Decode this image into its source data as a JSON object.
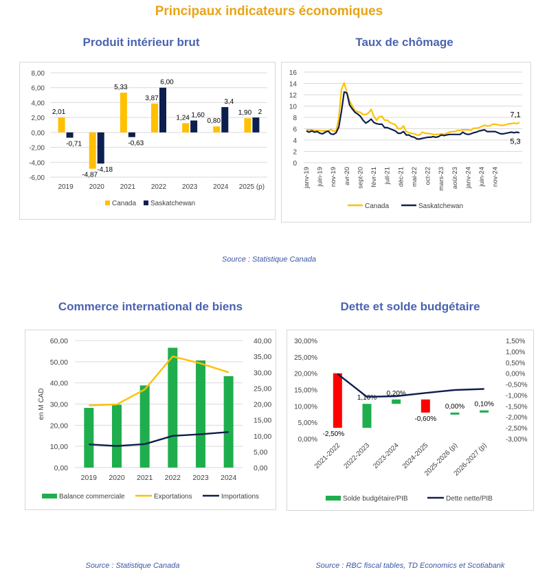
{
  "page": {
    "title": "Principaux indicateurs économiques",
    "source_top": "Source : Statistique Canada",
    "source_bottom_left": "Source : Statistique Canada",
    "source_bottom_right": "Source : RBC fiscal tables, TD Economics et Scotiabank"
  },
  "colors": {
    "canada": "#FFC000",
    "sask": "#0D1F4E",
    "green": "#1FAE4E",
    "red": "#FF0000",
    "title": "#E8A317",
    "subtitle": "#4A63B0"
  },
  "chart_data": [
    {
      "id": "pib",
      "type": "bar",
      "title": "Produit intérieur brut",
      "categories": [
        "2019",
        "2020",
        "2021",
        "2022",
        "2023",
        "2024",
        "2025 (p)"
      ],
      "series": [
        {
          "name": "Canada",
          "values": [
            2.01,
            -4.87,
            5.33,
            3.87,
            1.24,
            0.8,
            1.9
          ],
          "labels": [
            "2,01",
            "-4,87",
            "5,33",
            "3,87",
            "1,24",
            "0,80",
            "1,90"
          ]
        },
        {
          "name": "Saskatchewan",
          "values": [
            -0.71,
            -4.18,
            -0.63,
            6.0,
            1.6,
            3.4,
            2
          ],
          "labels": [
            "-0,71",
            "-4,18",
            "-0,63",
            "6,00",
            "1,60",
            "3,4",
            "2"
          ]
        }
      ],
      "ylim": [
        -6,
        8
      ],
      "yticks": [
        "-6,00",
        "-4,00",
        "-2,00",
        "0,00",
        "2,00",
        "4,00",
        "6,00",
        "8,00"
      ]
    },
    {
      "id": "chomage",
      "type": "line",
      "title": "Taux de chômage",
      "x_tick_labels": [
        "janv-19",
        "juin-19",
        "nov-19",
        "avr-20",
        "sept-20",
        "févr-21",
        "juil-21",
        "déc-21",
        "mai-22",
        "oct-22",
        "mars-23",
        "août-23",
        "janv-24",
        "juin-24",
        "nov-24"
      ],
      "ylim": [
        0,
        16
      ],
      "yticks": [
        "0",
        "2",
        "4",
        "6",
        "8",
        "10",
        "12",
        "14",
        "16"
      ],
      "series": [
        {
          "name": "Canada",
          "values": [
            5.8,
            5.8,
            5.8,
            5.7,
            5.7,
            5.7,
            5.6,
            5.7,
            5.5,
            5.9,
            5.6,
            5.6,
            7.8,
            13.0,
            14.1,
            12.3,
            10.9,
            10.0,
            9.2,
            9.0,
            8.9,
            8.5,
            8.5,
            8.8,
            9.4,
            8.2,
            7.5,
            8.1,
            8.2,
            7.5,
            7.5,
            7.1,
            6.9,
            6.7,
            6.0,
            6.0,
            6.5,
            5.5,
            5.3,
            5.2,
            5.1,
            4.9,
            4.9,
            5.4,
            5.2,
            5.2,
            5.1,
            5.0,
            5.0,
            5.0,
            5.1,
            5.0,
            5.2,
            5.4,
            5.5,
            5.5,
            5.7,
            5.7,
            5.8,
            5.8,
            5.8,
            5.7,
            6.1,
            6.1,
            6.2,
            6.4,
            6.6,
            6.5,
            6.5,
            6.8,
            6.8,
            6.7,
            6.6,
            6.6,
            6.7,
            6.9,
            6.9,
            7.0,
            6.9,
            7.1
          ],
          "end_label": "7,1"
        },
        {
          "name": "Saskatchewan",
          "values": [
            5.6,
            5.4,
            5.6,
            5.4,
            5.5,
            5.2,
            5.1,
            5.4,
            5.6,
            5.1,
            5.0,
            5.3,
            6.3,
            9.1,
            12.5,
            12.3,
            10.2,
            9.5,
            8.9,
            8.6,
            8.2,
            7.5,
            7.0,
            7.3,
            7.7,
            7.1,
            6.9,
            6.8,
            6.8,
            6.2,
            6.2,
            6.0,
            5.8,
            5.6,
            5.2,
            5.2,
            5.5,
            4.9,
            4.9,
            4.6,
            4.5,
            4.2,
            4.2,
            4.3,
            4.4,
            4.5,
            4.5,
            4.6,
            4.5,
            4.6,
            4.9,
            4.8,
            4.9,
            5.0,
            5.0,
            5.0,
            5.0,
            5.0,
            5.4,
            5.1,
            5.0,
            5.1,
            5.3,
            5.4,
            5.6,
            5.7,
            5.8,
            5.5,
            5.5,
            5.5,
            5.5,
            5.3,
            5.1,
            5.1,
            5.2,
            5.3,
            5.4,
            5.3,
            5.4,
            5.3
          ],
          "end_label": "5,3"
        }
      ]
    },
    {
      "id": "commerce",
      "type": "bar",
      "title": "Commerce international de biens",
      "categories": [
        "2019",
        "2020",
        "2021",
        "2022",
        "2023",
        "2024"
      ],
      "ylabel": "en M CAD",
      "ylim": [
        0,
        60
      ],
      "yticks": [
        "0,00",
        "10,00",
        "20,00",
        "30,00",
        "40,00",
        "50,00",
        "60,00"
      ],
      "y2lim": [
        0,
        40
      ],
      "y2ticks": [
        "0,00",
        "5,00",
        "10,00",
        "15,00",
        "20,00",
        "25,00",
        "30,00",
        "35,00",
        "40,00"
      ],
      "series": [
        {
          "name": "Balance commerciale",
          "axis": "left",
          "values": [
            28.2,
            29.7,
            38.8,
            56.6,
            50.6,
            43.2
          ]
        },
        {
          "name": "Exportations",
          "axis": "right",
          "values": [
            19.6,
            19.9,
            24.6,
            35.0,
            32.8,
            30.0
          ]
        },
        {
          "name": "Importations",
          "axis": "right",
          "values": [
            7.3,
            6.8,
            7.4,
            10.0,
            10.5,
            11.2
          ]
        }
      ]
    },
    {
      "id": "dette",
      "type": "bar",
      "title": "Dette et solde budgétaire",
      "categories": [
        "2021-2022",
        "2022-2023",
        "2023-2024",
        "2024-2025",
        "2025-2026 (p)",
        "2026-2027 (p)"
      ],
      "ylim": [
        0,
        30
      ],
      "yticks": [
        "0,00%",
        "5,00%",
        "10,00%",
        "15,00%",
        "20,00%",
        "25,00%",
        "30,00%"
      ],
      "y2lim": [
        -3,
        1.5
      ],
      "y2ticks": [
        "-3,00%",
        "-2,50%",
        "-2,00%",
        "-1,50%",
        "-1,00%",
        "-0,50%",
        "0,00%",
        "0,50%",
        "1,00%",
        "1,50%"
      ],
      "series": [
        {
          "name": "Solde budgétaire/PIB",
          "axis": "right",
          "values": [
            -2.5,
            1.1,
            0.2,
            -0.6,
            0.0,
            0.1
          ],
          "labels": [
            "-2,50%",
            "1,10%",
            "0,20%",
            "-0,60%",
            "0,00%",
            "0,10%"
          ]
        },
        {
          "name": "Dette nette/PIB",
          "axis": "left",
          "values": [
            19.8,
            12.8,
            13.0,
            14.0,
            14.9,
            15.2
          ]
        }
      ]
    }
  ]
}
